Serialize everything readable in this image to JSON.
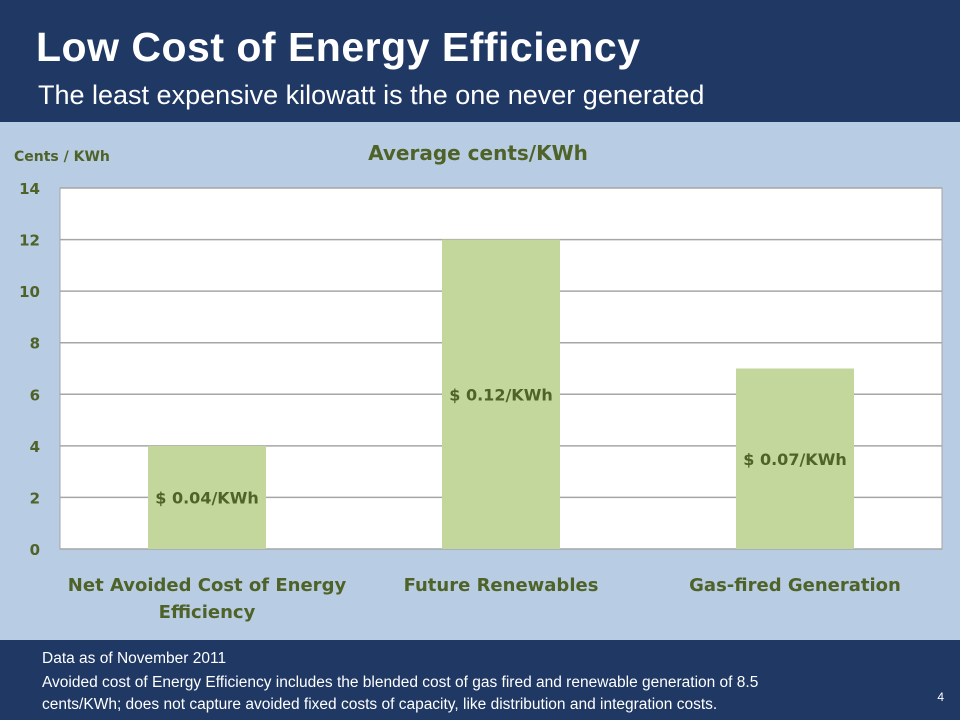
{
  "slide": {
    "title": "Low Cost of Energy Efficiency",
    "subtitle": "The least expensive kilowatt is the one never generated",
    "footer_line1": "Data as of November 2011",
    "footer_line2": "Avoided cost of Energy Efficiency includes the blended cost of gas fired and renewable generation of 8.5",
    "footer_line3": "cents/KWh; does not capture avoided fixed costs of capacity, like distribution and integration costs.",
    "page_number": "4"
  },
  "colors": {
    "background": "#1f3864",
    "chart_panel": "#b8cce4",
    "plot_area": "#ffffff",
    "bar": "#c3d69b",
    "chart_text": "#4f6228"
  },
  "chart_data": {
    "type": "bar",
    "title": "Average cents/KWh",
    "ylabel": "Cents / KWh",
    "xlabel": "",
    "ylim": [
      0,
      14
    ],
    "yticks": [
      0,
      2,
      4,
      6,
      8,
      10,
      12,
      14
    ],
    "grid": true,
    "categories": [
      [
        "Net Avoided Cost of Energy",
        "Efficiency"
      ],
      [
        "Future Renewables"
      ],
      [
        "Gas-fired Generation"
      ]
    ],
    "values": [
      4,
      12,
      7
    ],
    "data_labels": [
      "$ 0.04/KWh",
      "$ 0.12/KWh",
      "$ 0.07/KWh"
    ]
  }
}
